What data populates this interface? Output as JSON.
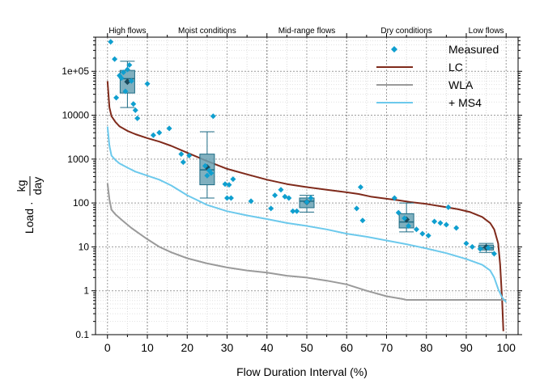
{
  "chart_data": {
    "type": "line",
    "xlabel": "Flow Duration Interval (%)",
    "ylabel": {
      "prefix": "Load",
      "numerator": "kg",
      "denominator": "day"
    },
    "xlim": [
      -3,
      103
    ],
    "ylim": [
      0.1,
      600000
    ],
    "y_scale": "log",
    "x_ticks": [
      0,
      10,
      20,
      30,
      40,
      50,
      60,
      70,
      80,
      90,
      100
    ],
    "y_ticks": [
      {
        "value": 0.1,
        "label": "0.1"
      },
      {
        "value": 1,
        "label": "1"
      },
      {
        "value": 10,
        "label": "10"
      },
      {
        "value": 100,
        "label": "100"
      },
      {
        "value": 1000,
        "label": "1000"
      },
      {
        "value": 10000,
        "label": "10000"
      },
      {
        "value": 100000,
        "label": "1e+05"
      }
    ],
    "grid": true,
    "legend_position": "top-right",
    "zones": [
      {
        "label": "High flows",
        "center": 5,
        "boundary": 10
      },
      {
        "label": "Moist conditions",
        "center": 25,
        "boundary": 40
      },
      {
        "label": "Mid-range flows",
        "center": 50,
        "boundary": 60
      },
      {
        "label": "Dry conditions",
        "center": 75,
        "boundary": 90
      },
      {
        "label": "Low flows",
        "center": 95,
        "boundary": null
      }
    ],
    "colors": {
      "measured": "#0f9fcf",
      "lc": "#7f2a1b",
      "wla": "#9a9a9a",
      "ms4": "#6cc9ec",
      "box_fill": "#6aa2b4",
      "box_edge": "#1d6b84"
    },
    "series": [
      {
        "name": "LC",
        "style": "line",
        "color": "#7f2a1b",
        "x": [
          0,
          0.5,
          1,
          2,
          3,
          5,
          7,
          10,
          13,
          16,
          20,
          25,
          30,
          35,
          40,
          45,
          50,
          55,
          60,
          63,
          66,
          70,
          73,
          76,
          80,
          84,
          88,
          91,
          94,
          96,
          97,
          98,
          98.5,
          99,
          99.3
        ],
        "y": [
          60000,
          15000,
          9500,
          7000,
          5600,
          4400,
          3700,
          3000,
          2500,
          2000,
          1400,
          900,
          600,
          450,
          340,
          270,
          230,
          200,
          175,
          160,
          140,
          125,
          115,
          105,
          95,
          83,
          72,
          62,
          48,
          35,
          25,
          12,
          4,
          0.6,
          0.12
        ]
      },
      {
        "name": "WLA",
        "style": "line",
        "color": "#9a9a9a",
        "x": [
          0,
          0.5,
          1,
          2,
          4,
          6,
          8,
          10,
          13,
          16,
          20,
          25,
          30,
          35,
          40,
          45,
          50,
          55,
          60,
          65,
          70,
          74,
          75,
          80,
          85,
          90,
          95,
          100
        ],
        "y": [
          280,
          120,
          70,
          55,
          38,
          27,
          20,
          15,
          10,
          7.5,
          5.5,
          4.2,
          3.4,
          2.9,
          2.6,
          2.2,
          2.0,
          1.7,
          1.4,
          1.0,
          0.75,
          0.65,
          0.62,
          0.62,
          0.62,
          0.62,
          0.62,
          0.62
        ]
      },
      {
        "name": "+ MS4",
        "style": "line",
        "color": "#6cc9ec",
        "x": [
          0,
          0.5,
          1,
          2,
          3,
          5,
          7,
          10,
          13,
          16,
          20,
          25,
          30,
          35,
          40,
          45,
          50,
          55,
          60,
          65,
          70,
          75,
          80,
          85,
          90,
          94,
          96,
          97,
          98,
          99,
          100
        ],
        "y": [
          5500,
          2000,
          1200,
          950,
          800,
          640,
          520,
          420,
          340,
          250,
          150,
          90,
          65,
          52,
          43,
          35,
          30,
          25,
          20,
          17,
          14,
          11.5,
          9.2,
          7.2,
          5.3,
          3.9,
          2.9,
          2.0,
          1.1,
          0.7,
          0.55
        ]
      },
      {
        "name": "Measured",
        "style": "points",
        "color": "#0f9fcf",
        "points": [
          [
            0.8,
            470000
          ],
          [
            1.8,
            190000
          ],
          [
            2.2,
            25000
          ],
          [
            3.0,
            80000
          ],
          [
            3.5,
            70000
          ],
          [
            4.0,
            95000
          ],
          [
            4.5,
            35000
          ],
          [
            5.0,
            110000
          ],
          [
            5.5,
            140000
          ],
          [
            6.0,
            60000
          ],
          [
            6.5,
            18000
          ],
          [
            7.0,
            13000
          ],
          [
            7.5,
            8500
          ],
          [
            10.0,
            52000
          ],
          [
            11.5,
            3500
          ],
          [
            13.0,
            4000
          ],
          [
            15.5,
            5000
          ],
          [
            18.5,
            1300
          ],
          [
            19.0,
            850
          ],
          [
            20.5,
            1200
          ],
          [
            24.5,
            700
          ],
          [
            25.0,
            420
          ],
          [
            25.5,
            550
          ],
          [
            26.0,
            480
          ],
          [
            26.5,
            9500
          ],
          [
            29.5,
            270
          ],
          [
            30.0,
            130
          ],
          [
            30.5,
            260
          ],
          [
            31.0,
            130
          ],
          [
            31.5,
            350
          ],
          [
            36.0,
            110
          ],
          [
            41.0,
            75
          ],
          [
            42.0,
            150
          ],
          [
            43.5,
            200
          ],
          [
            44.5,
            140
          ],
          [
            45.5,
            130
          ],
          [
            46.5,
            65
          ],
          [
            47.5,
            65
          ],
          [
            50.0,
            105
          ],
          [
            51.0,
            130
          ],
          [
            62.5,
            75
          ],
          [
            63.5,
            230
          ],
          [
            64.0,
            40
          ],
          [
            72.0,
            130
          ],
          [
            73.0,
            60
          ],
          [
            74.5,
            45
          ],
          [
            75.5,
            30
          ],
          [
            77.5,
            25
          ],
          [
            79.0,
            20
          ],
          [
            80.5,
            18
          ],
          [
            82.0,
            38
          ],
          [
            83.5,
            35
          ],
          [
            85.0,
            32
          ],
          [
            85.5,
            80
          ],
          [
            87.5,
            27
          ],
          [
            90.0,
            12
          ],
          [
            91.5,
            10
          ],
          [
            93.5,
            9
          ],
          [
            95.5,
            9.5
          ],
          [
            97.0,
            7
          ]
        ]
      }
    ],
    "boxplots": [
      {
        "x": 5,
        "whisker_low": 15000,
        "q1": 32000,
        "median": 68000,
        "q3": 105000,
        "whisker_high": 170000,
        "mean": 58000
      },
      {
        "x": 25,
        "whisker_low": 130,
        "q1": 260,
        "median": 570,
        "q3": 1300,
        "whisker_high": 4200,
        "mean": 650
      },
      {
        "x": 50,
        "whisker_low": 62,
        "q1": 78,
        "median": 110,
        "q3": 130,
        "whisker_high": 150,
        "mean": 105
      },
      {
        "x": 75,
        "whisker_low": 22,
        "q1": 27,
        "median": 37,
        "q3": 57,
        "whisker_high": 100,
        "mean": 42
      },
      {
        "x": 95,
        "whisker_low": 7.5,
        "q1": 8.5,
        "median": 9.5,
        "q3": 11,
        "whisker_high": 12,
        "mean": 9.8
      }
    ]
  }
}
